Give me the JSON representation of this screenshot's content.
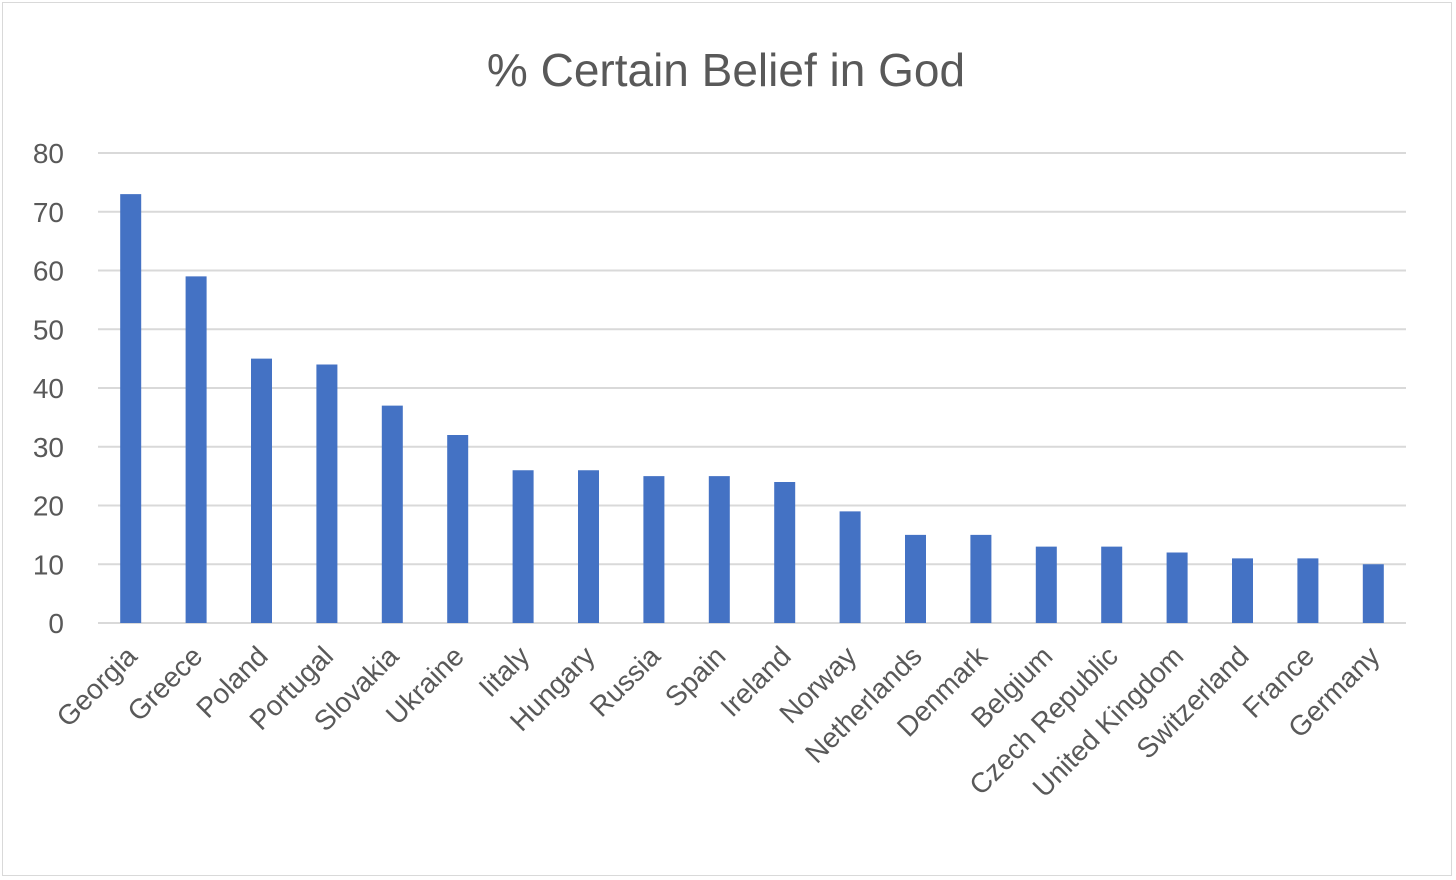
{
  "chart_data": {
    "type": "bar",
    "title": "% Certain Belief in God",
    "xlabel": "",
    "ylabel": "",
    "ylim": [
      0,
      80
    ],
    "yticks": [
      0,
      10,
      20,
      30,
      40,
      50,
      60,
      70,
      80
    ],
    "grid": true,
    "legend": "none",
    "bar_color": "#4472C4",
    "categories": [
      "Georgia",
      "Greece",
      "Poland",
      "Portugal",
      "Slovakia",
      "Ukraine",
      "Iitaly",
      "Hungary",
      "Russia",
      "Spain",
      "Ireland",
      "Norway",
      "Netherlands",
      "Denmark",
      "Belgium",
      "Czech Republic",
      "United Kingdom",
      "Switzerland",
      "France",
      "Germany"
    ],
    "values": [
      73,
      59,
      45,
      44,
      37,
      32,
      26,
      26,
      25,
      25,
      24,
      19,
      15,
      15,
      13,
      13,
      12,
      11,
      11,
      10
    ]
  }
}
